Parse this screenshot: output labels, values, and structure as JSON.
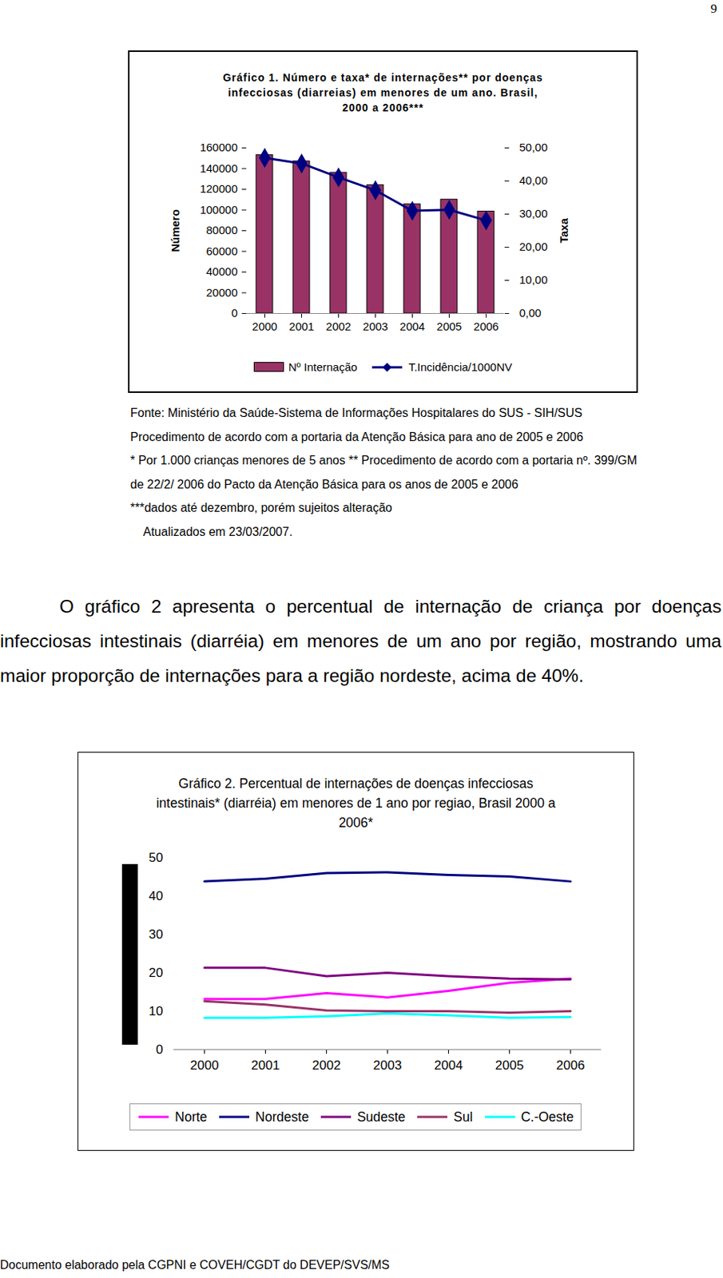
{
  "page_number": 9,
  "chart_data": [
    {
      "type": "bar",
      "title": "Gráfico 1. Número e taxa* de internações** por doenças infecciosas (diarreias) em menores de um ano. Brasil, 2000 a 2006***",
      "categories": [
        "2000",
        "2001",
        "2002",
        "2003",
        "2004",
        "2005",
        "2006"
      ],
      "series": [
        {
          "name": "Nº Internação",
          "type": "bar",
          "color": "#993366",
          "values": [
            153000,
            147000,
            136000,
            124000,
            105500,
            110000,
            98500
          ]
        },
        {
          "name": "T.Incidência/1000NV",
          "type": "line",
          "axis": "y2",
          "color": "#000080",
          "marker": "diamond",
          "values": [
            47.0,
            45.3,
            41.1,
            37.2,
            31.0,
            31.3,
            28.1
          ]
        }
      ],
      "ylabel": "Número",
      "y2label": "Taxa",
      "ylim": [
        0,
        160000
      ],
      "yticks": [
        0,
        20000,
        40000,
        60000,
        80000,
        100000,
        120000,
        140000,
        160000
      ],
      "y2lim": [
        0,
        50
      ],
      "y2ticks": [
        {
          "value": 0,
          "label": "0,00"
        },
        {
          "value": 10,
          "label": "10,00"
        },
        {
          "value": 20,
          "label": "20,00"
        },
        {
          "value": 30,
          "label": "30,00"
        },
        {
          "value": 40,
          "label": "40,00"
        },
        {
          "value": 50,
          "label": "50,00"
        }
      ],
      "grid": false,
      "legend": "bottom"
    },
    {
      "type": "line",
      "title": "Gráfico 2. Percentual de internações de doenças infecciosas intestinais* (diarréia) em menores de 1 ano por regiao, Brasil 2000 a 2006*",
      "categories": [
        "2000",
        "2001",
        "2002",
        "2003",
        "2004",
        "2005",
        "2006"
      ],
      "series": [
        {
          "name": "Norte",
          "color": "#ff00ff",
          "values": [
            13.2,
            13.2,
            14.7,
            13.6,
            15.3,
            17.4,
            18.5
          ]
        },
        {
          "name": "Nordeste",
          "color": "#000080",
          "values": [
            43.8,
            44.5,
            46.0,
            46.2,
            45.5,
            45.1,
            43.8
          ]
        },
        {
          "name": "Sudeste",
          "color": "#800080",
          "values": [
            21.3,
            21.3,
            19.1,
            20.0,
            19.1,
            18.5,
            18.3
          ]
        },
        {
          "name": "Sul",
          "color": "#993366",
          "values": [
            12.6,
            11.7,
            10.2,
            10.0,
            10.0,
            9.6,
            10.0
          ]
        },
        {
          "name": "C.-Oeste",
          "color": "#00ffff",
          "values": [
            8.3,
            8.3,
            8.7,
            9.4,
            8.9,
            8.3,
            8.5
          ]
        }
      ],
      "ylim": [
        0,
        50
      ],
      "yticks": [
        0,
        10,
        20,
        30,
        40,
        50
      ],
      "grid": false,
      "legend": "bottom"
    }
  ],
  "notes": [
    "Fonte: Ministério da Saúde-Sistema de Informações Hospitalares do SUS - SIH/SUS",
    "Procedimento de acordo com a portaria da Atenção Básica para ano de 2005 e 2006",
    "* Por 1.000 crianças menores de 5 anos ** Procedimento de acordo com a portaria nº. 399/GM",
    "de 22/2/ 2006 do Pacto da Atenção Básica para os anos de 2005 e 2006",
    "***dados até dezembro, porém sujeitos alteração",
    "Atualizados em 23/03/2007."
  ],
  "paragraph": "O gráfico 2 apresenta o percentual de internação de criança por doenças infecciosas intestinais (diarréia) em menores de um ano por região, mostrando uma maior proporção de internações para a região nordeste, acima de 40%.",
  "footer": "Documento elaborado pela CGPNI e COVEH/CGDT do DEVEP/SVS/MS"
}
